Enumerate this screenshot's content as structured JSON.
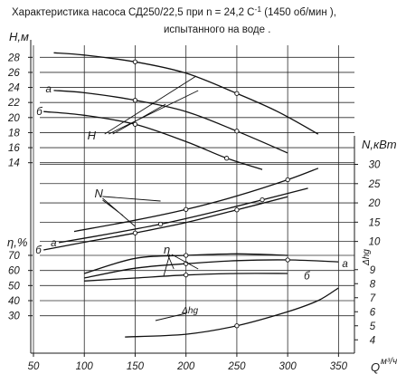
{
  "title": {
    "line1": "Характеристика насоса СД250/22,5 при  n = 24,2 С",
    "sup": "-1",
    "line1_tail": "  (1450 об/мин ),",
    "line2": "испытанного на воде ."
  },
  "chart_data": {
    "type": "line",
    "x_axis": {
      "label_main": "Q",
      "label_unit": "м³/ч",
      "ticks": [
        50,
        100,
        150,
        200,
        250,
        300,
        350
      ],
      "range": [
        50,
        355
      ]
    },
    "head_axis": {
      "label": "H,м",
      "ticks": [
        14,
        16,
        18,
        20,
        22,
        24,
        26,
        28
      ],
      "range": [
        13,
        29
      ]
    },
    "power_axis": {
      "label": "N,кВт",
      "ticks": [
        10,
        15,
        20,
        25,
        30
      ],
      "range": [
        8.5,
        32
      ]
    },
    "efficiency_axis": {
      "label": "η,%",
      "ticks": [
        30,
        40,
        50,
        60,
        70
      ],
      "range": [
        22,
        76
      ]
    },
    "npsh_axis": {
      "label": "Δhg",
      "ticks": [
        4,
        5,
        6,
        7,
        8,
        9
      ],
      "range": [
        3.5,
        9.5
      ]
    },
    "head_curves": [
      {
        "label": "",
        "x": [
          70,
          100,
          150,
          200,
          250,
          290,
          330
        ],
        "y": [
          28.6,
          28.3,
          27.4,
          25.9,
          23.2,
          20.8,
          17.8
        ]
      },
      {
        "label": "а",
        "x": [
          70,
          100,
          150,
          200,
          250,
          300
        ],
        "y": [
          23.6,
          23.3,
          22.3,
          20.8,
          18.2,
          15.3
        ]
      },
      {
        "label": "б",
        "x": [
          60,
          100,
          150,
          200,
          240,
          275
        ],
        "y": [
          20.8,
          20.3,
          19.1,
          16.8,
          14.6,
          13.1
        ]
      }
    ],
    "power_curves": [
      {
        "label": "",
        "x": [
          90,
          150,
          200,
          250,
          300,
          330
        ],
        "y": [
          12.6,
          15.5,
          18.3,
          21.8,
          26.0,
          29.0
        ]
      },
      {
        "label": "а",
        "x": [
          75,
          125,
          175,
          225,
          275,
          320
        ],
        "y": [
          9.7,
          12.0,
          14.5,
          17.5,
          20.8,
          23.8
        ]
      },
      {
        "label": "б",
        "x": [
          60,
          100,
          150,
          200,
          250,
          300
        ],
        "y": [
          7.8,
          9.8,
          12.2,
          14.9,
          18.2,
          21.6
        ]
      }
    ],
    "efficiency_curves": [
      {
        "label": "",
        "x": [
          100,
          150,
          200,
          250,
          300
        ],
        "y": [
          58,
          68,
          70,
          71,
          70
        ]
      },
      {
        "label": "а",
        "x": [
          100,
          150,
          200,
          250,
          300,
          350
        ],
        "y": [
          55,
          61.5,
          64.5,
          66.5,
          67,
          65.7
        ]
      },
      {
        "label": "б",
        "x": [
          100,
          150,
          200,
          250,
          300
        ],
        "y": [
          53,
          55,
          57,
          58,
          58
        ]
      }
    ],
    "npsh_curve": {
      "label": "Δhg",
      "x": [
        140,
        200,
        250,
        300,
        330,
        350
      ],
      "y": [
        4.2,
        4.4,
        5.0,
        6.0,
        6.8,
        7.7
      ]
    },
    "grid": true,
    "legend": "none"
  }
}
